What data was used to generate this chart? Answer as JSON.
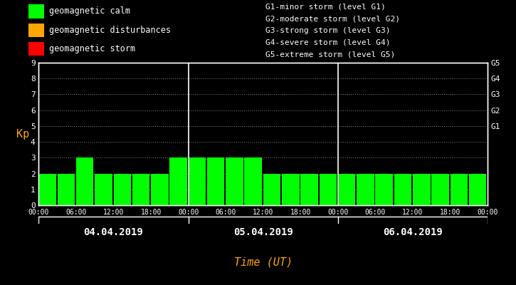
{
  "bg_color": "#000000",
  "bar_color": "#00ff00",
  "bar_color_yellow": "#ffa500",
  "bar_color_red": "#ff0000",
  "text_color": "#ffffff",
  "axis_label_color": "#ffa500",
  "xlabel_color": "#ffa500",
  "days": [
    "04.04.2019",
    "05.04.2019",
    "06.04.2019"
  ],
  "kp_values_day1": [
    2,
    2,
    3,
    2,
    2,
    2,
    2,
    3
  ],
  "kp_values_day2": [
    3,
    3,
    3,
    3,
    2,
    2,
    2,
    2
  ],
  "kp_values_day3": [
    2,
    2,
    2,
    2,
    2,
    2,
    2,
    2
  ],
  "ylim": [
    0,
    9
  ],
  "yticks": [
    0,
    1,
    2,
    3,
    4,
    5,
    6,
    7,
    8,
    9
  ],
  "right_labels": [
    "G1",
    "G2",
    "G3",
    "G4",
    "G5"
  ],
  "right_label_yvals": [
    5,
    6,
    7,
    8,
    9
  ],
  "legend_items": [
    {
      "label": "geomagnetic calm",
      "color": "#00ff00"
    },
    {
      "label": "geomagnetic disturbances",
      "color": "#ffa500"
    },
    {
      "label": "geomagnetic storm",
      "color": "#ff0000"
    }
  ],
  "storm_legend": [
    "G1-minor storm (level G1)",
    "G2-moderate storm (level G2)",
    "G3-strong storm (level G3)",
    "G4-severe storm (level G4)",
    "G5-extreme storm (level G5)"
  ],
  "xlabel": "Time (UT)",
  "ylabel": "Kp"
}
